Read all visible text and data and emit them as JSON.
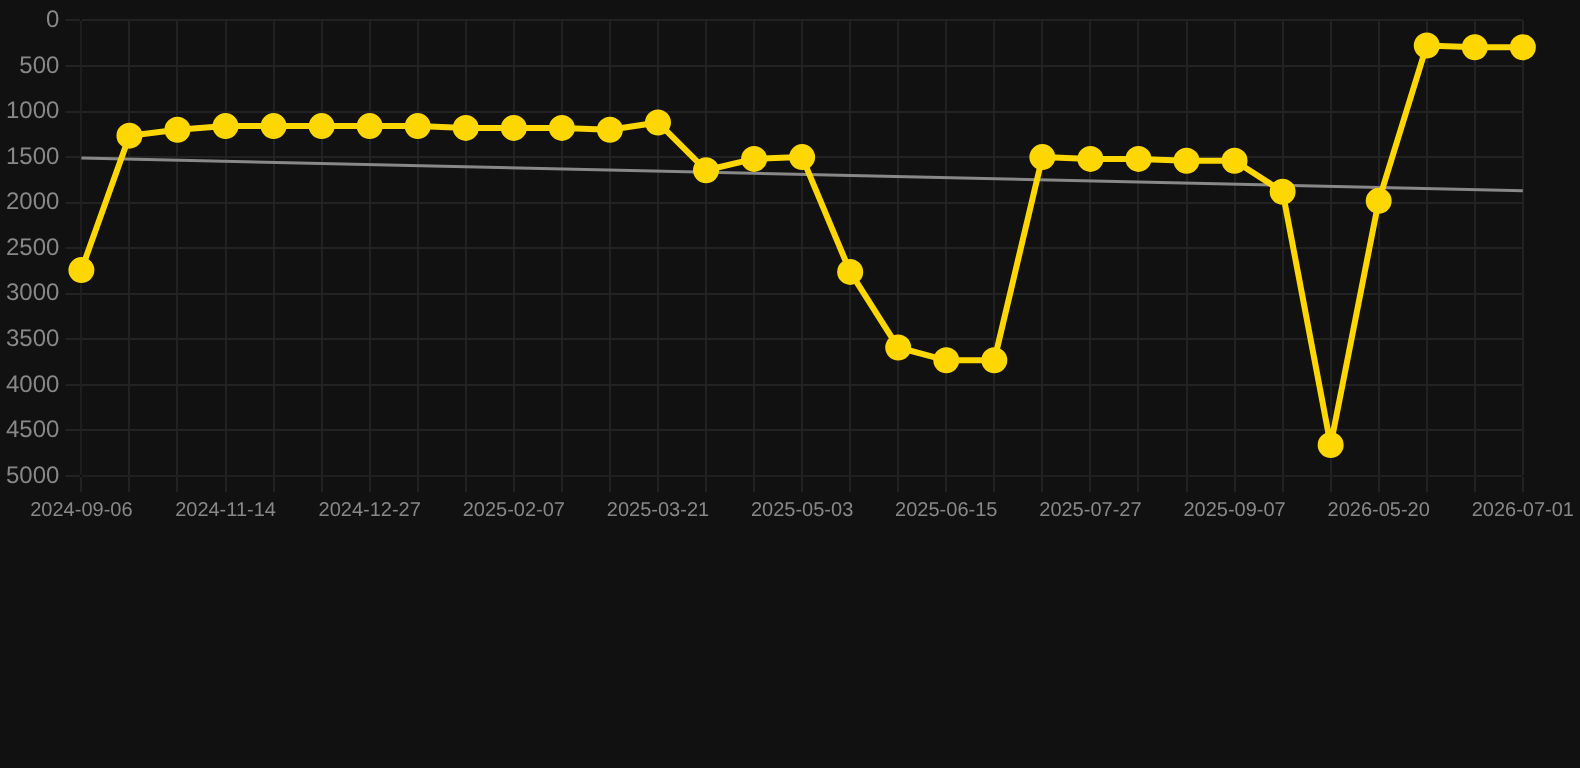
{
  "chart_data": {
    "type": "line",
    "categories": [
      "2024-09-06",
      null,
      null,
      "2024-11-14",
      null,
      null,
      "2024-12-27",
      null,
      null,
      "2025-02-07",
      null,
      null,
      "2025-03-21",
      null,
      null,
      "2025-05-03",
      null,
      null,
      "2025-06-15",
      null,
      null,
      "2025-07-27",
      null,
      null,
      "2025-09-07",
      null,
      null,
      "2026-05-20",
      null,
      null,
      "2026-07-01"
    ],
    "series": [
      {
        "color": "#ffd700",
        "values": [
          2740,
          1265,
          1200,
          1160,
          1160,
          1160,
          1160,
          1160,
          1180,
          1180,
          1180,
          1200,
          1120,
          1645,
          1520,
          1500,
          2760,
          3590,
          3730,
          3730,
          1500,
          1520,
          1520,
          1540,
          1540,
          1880,
          4660,
          1980,
          275,
          295,
          295
        ]
      },
      {
        "color": "#888888",
        "marker": "none",
        "values": [
          1510,
          null,
          null,
          null,
          null,
          null,
          null,
          null,
          null,
          null,
          null,
          null,
          null,
          null,
          null,
          null,
          null,
          null,
          null,
          null,
          null,
          null,
          null,
          null,
          null,
          null,
          null,
          null,
          null,
          null,
          1870
        ]
      }
    ],
    "ylim": [
      5000,
      0
    ],
    "yticks": [
      0,
      500,
      1000,
      1500,
      2000,
      2500,
      3000,
      3500,
      4000,
      4500,
      5000
    ],
    "grid": true,
    "legend": false,
    "marker": "circle"
  }
}
